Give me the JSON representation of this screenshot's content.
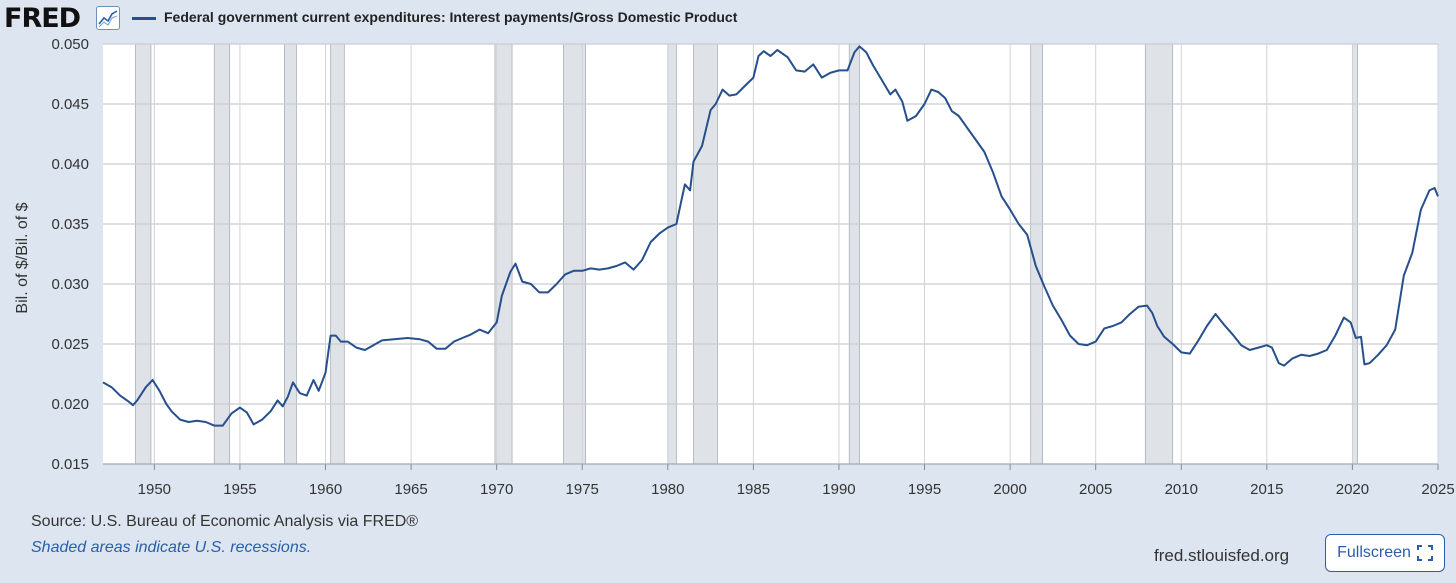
{
  "header": {
    "logo_text": "FRED",
    "logo_icon": "line-chart-icon",
    "legend_label": "Federal government current expenditures: Interest payments/Gross Domestic Product",
    "series_color": "#264f8c"
  },
  "footer": {
    "source": "Source: U.S. Bureau of Economic Analysis via FRED®",
    "note": "Shaded areas indicate U.S. recessions.",
    "site": "fred.stlouisfed.org",
    "fullscreen_label": "Fullscreen",
    "fullscreen_icon": "expand-corners-icon"
  },
  "chart_data": {
    "type": "line",
    "title": "",
    "xlabel": "",
    "ylabel": "Bil. of $/Bil. of $",
    "xlim": [
      1947.0,
      2025.0
    ],
    "ylim": [
      0.015,
      0.05
    ],
    "x_ticks": [
      "1950",
      "1955",
      "1960",
      "1965",
      "1970",
      "1975",
      "1980",
      "1985",
      "1990",
      "1995",
      "2000",
      "2005",
      "2010",
      "2015",
      "2020",
      "2025"
    ],
    "y_ticks": [
      "0.015",
      "0.020",
      "0.025",
      "0.030",
      "0.035",
      "0.040",
      "0.045",
      "0.050"
    ],
    "grid": true,
    "recession_color": "#dfe3e8",
    "recessions": [
      [
        1948.9,
        1949.8
      ],
      [
        1953.5,
        1954.4
      ],
      [
        1957.6,
        1958.3
      ],
      [
        1960.3,
        1961.1
      ],
      [
        1969.9,
        1970.9
      ],
      [
        1973.9,
        1975.2
      ],
      [
        1980.0,
        1980.5
      ],
      [
        1981.5,
        1982.9
      ],
      [
        1990.6,
        1991.2
      ],
      [
        2001.2,
        2001.9
      ],
      [
        2007.9,
        2009.5
      ],
      [
        2020.0,
        2020.3
      ]
    ],
    "series": [
      {
        "name": "Federal government current expenditures: Interest payments/Gross Domestic Product",
        "color": "#264f8c",
        "points": [
          [
            1947.0,
            0.0218
          ],
          [
            1947.5,
            0.0214
          ],
          [
            1948.0,
            0.0207
          ],
          [
            1948.5,
            0.0202
          ],
          [
            1948.75,
            0.0199
          ],
          [
            1949.0,
            0.0203
          ],
          [
            1949.5,
            0.0214
          ],
          [
            1949.9,
            0.022
          ],
          [
            1950.3,
            0.0211
          ],
          [
            1950.7,
            0.02
          ],
          [
            1951.0,
            0.0194
          ],
          [
            1951.5,
            0.0187
          ],
          [
            1952.0,
            0.0185
          ],
          [
            1952.5,
            0.0186
          ],
          [
            1953.0,
            0.0185
          ],
          [
            1953.5,
            0.0182
          ],
          [
            1954.0,
            0.0182
          ],
          [
            1954.5,
            0.0192
          ],
          [
            1955.0,
            0.0197
          ],
          [
            1955.4,
            0.0193
          ],
          [
            1955.8,
            0.0183
          ],
          [
            1956.3,
            0.0187
          ],
          [
            1956.8,
            0.0194
          ],
          [
            1957.2,
            0.0203
          ],
          [
            1957.5,
            0.0198
          ],
          [
            1957.8,
            0.0206
          ],
          [
            1958.1,
            0.0218
          ],
          [
            1958.5,
            0.0209
          ],
          [
            1958.9,
            0.0207
          ],
          [
            1959.3,
            0.022
          ],
          [
            1959.6,
            0.0211
          ],
          [
            1960.0,
            0.0226
          ],
          [
            1960.3,
            0.0257
          ],
          [
            1960.6,
            0.0257
          ],
          [
            1960.9,
            0.0252
          ],
          [
            1961.3,
            0.0252
          ],
          [
            1961.8,
            0.0247
          ],
          [
            1962.3,
            0.0245
          ],
          [
            1962.8,
            0.0249
          ],
          [
            1963.3,
            0.0253
          ],
          [
            1964.0,
            0.0254
          ],
          [
            1964.8,
            0.0255
          ],
          [
            1965.5,
            0.0254
          ],
          [
            1966.0,
            0.0252
          ],
          [
            1966.5,
            0.0246
          ],
          [
            1967.0,
            0.0246
          ],
          [
            1967.5,
            0.0252
          ],
          [
            1968.0,
            0.0255
          ],
          [
            1968.5,
            0.0258
          ],
          [
            1969.0,
            0.0262
          ],
          [
            1969.5,
            0.0259
          ],
          [
            1970.0,
            0.0268
          ],
          [
            1970.3,
            0.029
          ],
          [
            1970.8,
            0.031
          ],
          [
            1971.1,
            0.0317
          ],
          [
            1971.5,
            0.0302
          ],
          [
            1972.0,
            0.03
          ],
          [
            1972.5,
            0.0293
          ],
          [
            1973.0,
            0.0293
          ],
          [
            1973.5,
            0.03
          ],
          [
            1974.0,
            0.0308
          ],
          [
            1974.5,
            0.0311
          ],
          [
            1975.0,
            0.0311
          ],
          [
            1975.5,
            0.0313
          ],
          [
            1976.0,
            0.0312
          ],
          [
            1976.5,
            0.0313
          ],
          [
            1977.0,
            0.0315
          ],
          [
            1977.5,
            0.0318
          ],
          [
            1978.0,
            0.0312
          ],
          [
            1978.5,
            0.032
          ],
          [
            1979.0,
            0.0335
          ],
          [
            1979.5,
            0.0342
          ],
          [
            1980.0,
            0.0347
          ],
          [
            1980.5,
            0.035
          ],
          [
            1980.8,
            0.037
          ],
          [
            1981.0,
            0.0383
          ],
          [
            1981.3,
            0.0378
          ],
          [
            1981.5,
            0.0402
          ],
          [
            1982.0,
            0.0415
          ],
          [
            1982.5,
            0.0445
          ],
          [
            1982.8,
            0.045
          ],
          [
            1983.2,
            0.0462
          ],
          [
            1983.6,
            0.0457
          ],
          [
            1984.0,
            0.0458
          ],
          [
            1984.5,
            0.0465
          ],
          [
            1985.0,
            0.0472
          ],
          [
            1985.3,
            0.049
          ],
          [
            1985.6,
            0.0494
          ],
          [
            1986.0,
            0.049
          ],
          [
            1986.4,
            0.0495
          ],
          [
            1987.0,
            0.0489
          ],
          [
            1987.5,
            0.0478
          ],
          [
            1988.0,
            0.0477
          ],
          [
            1988.5,
            0.0483
          ],
          [
            1989.0,
            0.0472
          ],
          [
            1989.5,
            0.0476
          ],
          [
            1990.0,
            0.0478
          ],
          [
            1990.5,
            0.0478
          ],
          [
            1990.9,
            0.0493
          ],
          [
            1991.2,
            0.0498
          ],
          [
            1991.6,
            0.0493
          ],
          [
            1992.0,
            0.0482
          ],
          [
            1992.5,
            0.047
          ],
          [
            1993.0,
            0.0458
          ],
          [
            1993.3,
            0.0462
          ],
          [
            1993.7,
            0.0452
          ],
          [
            1994.0,
            0.0436
          ],
          [
            1994.5,
            0.044
          ],
          [
            1995.0,
            0.045
          ],
          [
            1995.4,
            0.0462
          ],
          [
            1995.8,
            0.046
          ],
          [
            1996.2,
            0.0455
          ],
          [
            1996.6,
            0.0444
          ],
          [
            1997.0,
            0.044
          ],
          [
            1997.5,
            0.043
          ],
          [
            1998.0,
            0.042
          ],
          [
            1998.5,
            0.041
          ],
          [
            1999.0,
            0.0393
          ],
          [
            1999.5,
            0.0373
          ],
          [
            2000.0,
            0.0362
          ],
          [
            2000.5,
            0.035
          ],
          [
            2001.0,
            0.0341
          ],
          [
            2001.5,
            0.0315
          ],
          [
            2002.0,
            0.0298
          ],
          [
            2002.5,
            0.0282
          ],
          [
            2003.0,
            0.027
          ],
          [
            2003.5,
            0.0257
          ],
          [
            2004.0,
            0.025
          ],
          [
            2004.5,
            0.0249
          ],
          [
            2005.0,
            0.0252
          ],
          [
            2005.5,
            0.0263
          ],
          [
            2006.0,
            0.0265
          ],
          [
            2006.5,
            0.0268
          ],
          [
            2007.0,
            0.0275
          ],
          [
            2007.5,
            0.0281
          ],
          [
            2008.0,
            0.0282
          ],
          [
            2008.3,
            0.0276
          ],
          [
            2008.6,
            0.0265
          ],
          [
            2009.0,
            0.0256
          ],
          [
            2009.5,
            0.025
          ],
          [
            2010.0,
            0.0243
          ],
          [
            2010.5,
            0.0242
          ],
          [
            2011.0,
            0.0253
          ],
          [
            2011.5,
            0.0265
          ],
          [
            2012.0,
            0.0275
          ],
          [
            2012.5,
            0.0266
          ],
          [
            2013.0,
            0.0258
          ],
          [
            2013.5,
            0.0249
          ],
          [
            2014.0,
            0.0245
          ],
          [
            2014.5,
            0.0247
          ],
          [
            2015.0,
            0.0249
          ],
          [
            2015.3,
            0.0247
          ],
          [
            2015.7,
            0.0234
          ],
          [
            2016.0,
            0.0232
          ],
          [
            2016.5,
            0.0238
          ],
          [
            2017.0,
            0.0241
          ],
          [
            2017.5,
            0.024
          ],
          [
            2018.0,
            0.0242
          ],
          [
            2018.5,
            0.0245
          ],
          [
            2019.0,
            0.0257
          ],
          [
            2019.5,
            0.0272
          ],
          [
            2019.9,
            0.0268
          ],
          [
            2020.2,
            0.0255
          ],
          [
            2020.5,
            0.0256
          ],
          [
            2020.7,
            0.0233
          ],
          [
            2021.0,
            0.0234
          ],
          [
            2021.5,
            0.0241
          ],
          [
            2022.0,
            0.0249
          ],
          [
            2022.5,
            0.0262
          ],
          [
            2023.0,
            0.0307
          ],
          [
            2023.5,
            0.0326
          ],
          [
            2024.0,
            0.0362
          ],
          [
            2024.5,
            0.0378
          ],
          [
            2024.8,
            0.038
          ],
          [
            2025.0,
            0.0373
          ]
        ]
      }
    ]
  }
}
